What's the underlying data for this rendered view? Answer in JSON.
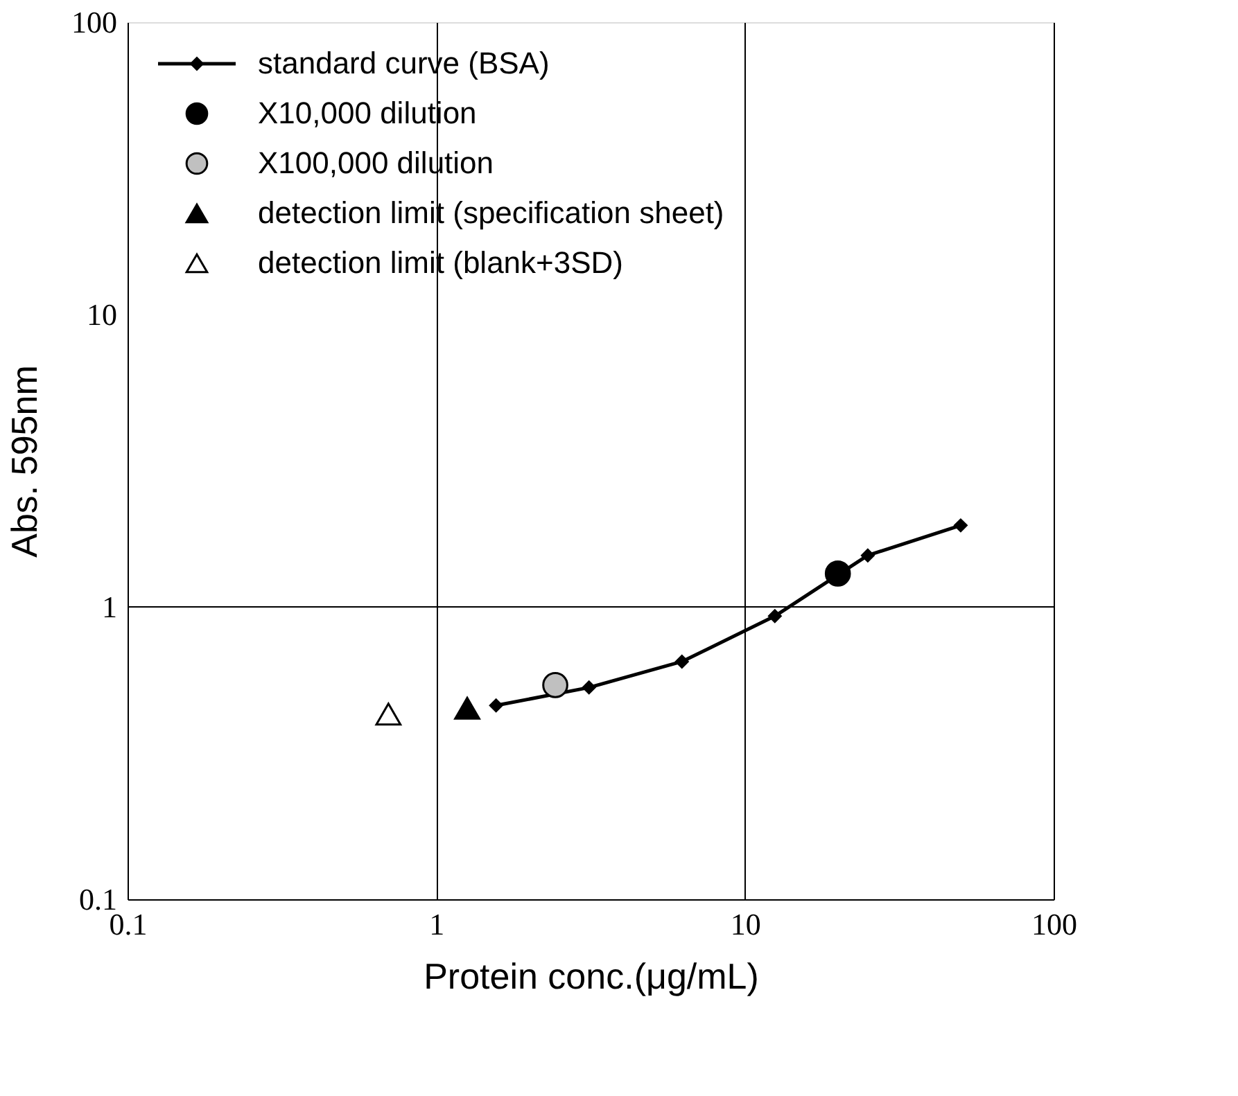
{
  "chart_data": {
    "type": "line",
    "xlabel": "Protein conc.(μg/mL)",
    "ylabel": "Abs. 595nm",
    "log": "xy",
    "xlim": [
      0.1,
      100
    ],
    "ylim": [
      0.1,
      100
    ],
    "xticks": [
      0.1,
      1,
      10,
      100
    ],
    "yticks": [
      0.1,
      1,
      10,
      100
    ],
    "grid": "x",
    "ref_lines": [
      {
        "axis": "y",
        "value": 1
      }
    ],
    "legend": "top left",
    "series": [
      {
        "name": "standard curve (BSA)",
        "marker": "diamond",
        "line_style": "solid",
        "color": "#000000",
        "x": [
          1.5625,
          3.125,
          6.25,
          12.5,
          25,
          50
        ],
        "values": [
          0.46,
          0.53,
          0.65,
          0.93,
          1.5,
          1.9
        ]
      },
      {
        "name": "X10,000 dilution",
        "type": "scatter",
        "marker": "circle",
        "color": "#000000",
        "x": [
          20
        ],
        "values": [
          1.3
        ]
      },
      {
        "name": "X100,000 dilution",
        "type": "scatter",
        "marker": "circle",
        "color": "#c0c0c0",
        "x": [
          2.43
        ],
        "values": [
          0.54
        ]
      },
      {
        "name": "detection limit (specification sheet)",
        "type": "scatter",
        "marker": "triangle",
        "color": "#000000",
        "x": [
          1.26
        ],
        "values": [
          0.45
        ]
      },
      {
        "name": "detection limit (blank+3SD)",
        "type": "scatter",
        "marker": "triangle",
        "color": "#ffffff",
        "x": [
          0.7
        ],
        "values": [
          0.43
        ]
      }
    ]
  }
}
